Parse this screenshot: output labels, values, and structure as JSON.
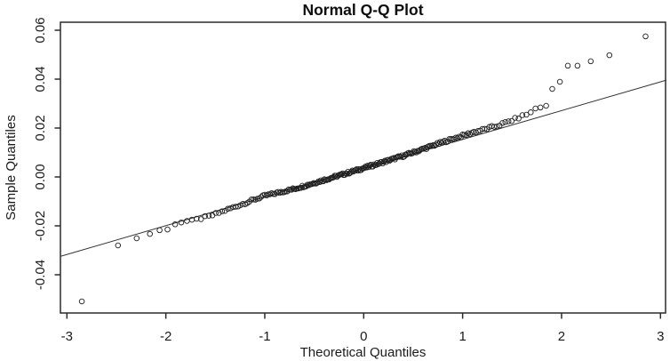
{
  "title": "Normal Q-Q Plot",
  "x_axis": {
    "label": "Theoretical Quantiles",
    "tick_labels": [
      "-3",
      "-2",
      "-1",
      "0",
      "1",
      "2",
      "3"
    ],
    "tick_values": [
      -3,
      -2,
      -1,
      0,
      1,
      2,
      3
    ]
  },
  "y_axis": {
    "label": "Sample Quantiles",
    "tick_labels": [
      "0.06",
      "0.04",
      "0.02",
      "0.00",
      "-0.02",
      "-0.04"
    ],
    "tick_values": [
      0.06,
      0.04,
      0.02,
      0.0,
      -0.02,
      -0.04
    ]
  },
  "colors": {
    "background": "#ffffff",
    "frame": "#2b2b2b",
    "reference_line": "#333333",
    "marker_stroke": "#1f1f1f",
    "text": "#111111"
  },
  "chart_data": {
    "type": "scatter",
    "subtype": "normal-qq-plot",
    "title": "Normal Q-Q Plot",
    "xlabel": "Theoretical Quantiles",
    "ylabel": "Sample Quantiles",
    "xlim": [
      -3.06,
      3.06
    ],
    "ylim": [
      -0.0556,
      0.0633
    ],
    "grid": false,
    "legend_position": "none",
    "n_points": 230,
    "marker": {
      "shape": "open-circle",
      "radius": 2.8,
      "stroke_width": 0.9
    },
    "reference_line": {
      "style": "solid",
      "slope": 0.0118,
      "intercept": 0.0036,
      "x1": -3.06,
      "y1": -0.0324,
      "x2": 3.06,
      "y2": 0.0396
    },
    "lower_tail_points": [
      [
        -2.849,
        -0.0509
      ],
      [
        -2.484,
        -0.028
      ],
      [
        -2.295,
        -0.0251
      ],
      [
        -2.161,
        -0.0233
      ],
      [
        -2.063,
        -0.0218
      ],
      [
        -1.983,
        -0.0215
      ],
      [
        -1.906,
        -0.0194
      ],
      [
        -1.844,
        -0.0186
      ],
      [
        -1.787,
        -0.018
      ],
      [
        -1.736,
        -0.0175
      ]
    ],
    "upper_tail_points": [
      [
        1.736,
        0.028
      ],
      [
        1.787,
        0.0284
      ],
      [
        1.844,
        0.0291
      ],
      [
        1.906,
        0.036
      ],
      [
        1.983,
        0.0389
      ],
      [
        2.063,
        0.0455
      ],
      [
        2.161,
        0.0455
      ],
      [
        2.295,
        0.0473
      ],
      [
        2.484,
        0.0498
      ],
      [
        2.849,
        0.0575
      ]
    ],
    "dense_band": {
      "description": "order statistics 11..220 of n=230 hugging the reference line; theoretical quantiles q_i = InvNorm((i-0.5)/230), sample value = intercept + slope*q + deviation(q) + jitter",
      "index_range": [
        11,
        220
      ],
      "line_slope": 0.0118,
      "line_intercept": 0.0036,
      "deviation_controls": [
        [
          -1.75,
          -0.001
        ],
        [
          -1.55,
          -0.0013
        ],
        [
          -1.35,
          -0.0006
        ],
        [
          -1.0,
          0.0005
        ],
        [
          -0.7,
          -0.0002
        ],
        [
          -0.4,
          -0.0001
        ],
        [
          0.0,
          0.0
        ],
        [
          0.4,
          0.0003
        ],
        [
          0.8,
          0.0012
        ],
        [
          1.1,
          0.0016
        ],
        [
          1.35,
          0.0014
        ],
        [
          1.5,
          0.0019
        ],
        [
          1.69,
          0.0028
        ]
      ],
      "jitter_amplitude": 0.0005
    }
  }
}
